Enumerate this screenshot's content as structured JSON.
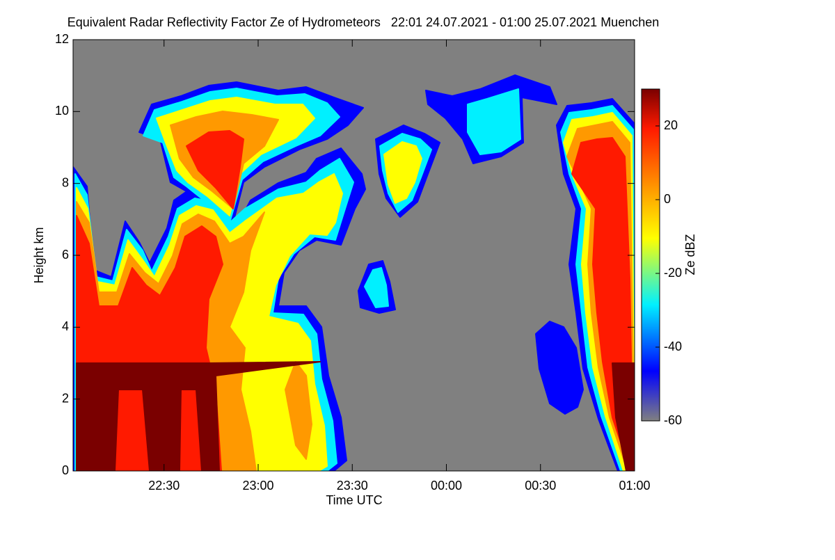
{
  "chart_data": {
    "type": "heatmap",
    "title": "Equivalent Radar Reflectivity Factor Ze of Hydrometeors   22:01 24.07.2021 - 01:00 25.07.2021 Muenchen",
    "x_label": "Time UTC",
    "y_label": "Height km",
    "colorbar_label": "Ze dBZ",
    "xlim": [
      1321,
      1500
    ],
    "xticks": [
      {
        "value": 1350,
        "label": "22:30"
      },
      {
        "value": 1380,
        "label": "23:00"
      },
      {
        "value": 1410,
        "label": "23:30"
      },
      {
        "value": 1440,
        "label": "00:00"
      },
      {
        "value": 1470,
        "label": "00:30"
      },
      {
        "value": 1500,
        "label": "01:00"
      }
    ],
    "ylim": [
      0,
      12
    ],
    "yticks": [
      0,
      2,
      4,
      6,
      8,
      10,
      12
    ],
    "clim": [
      -60,
      30
    ],
    "cticks": [
      20,
      0,
      -20,
      -40,
      -60
    ],
    "colormap": [
      "#7a0000",
      "#ff1a00",
      "#ff9900",
      "#ffff00",
      "#00f0ff",
      "#0000ff",
      "#808080"
    ],
    "background": "#808080"
  }
}
